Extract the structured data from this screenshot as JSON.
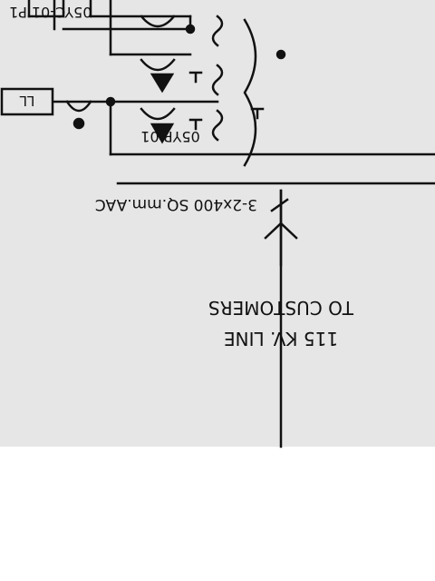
{
  "colors": {
    "panel": "#e6e6e6",
    "line": "#111111",
    "page": "#ffffff"
  },
  "labels": {
    "ll_box": "LL",
    "ct_upper": "05YC-01  P1",
    "ct_lower": "05YP-01",
    "cable": "3-2x400 SQ.mm.AAC",
    "destination_line1": "TO CUSTOMERS",
    "destination_line2": "115 KV. LINE"
  }
}
